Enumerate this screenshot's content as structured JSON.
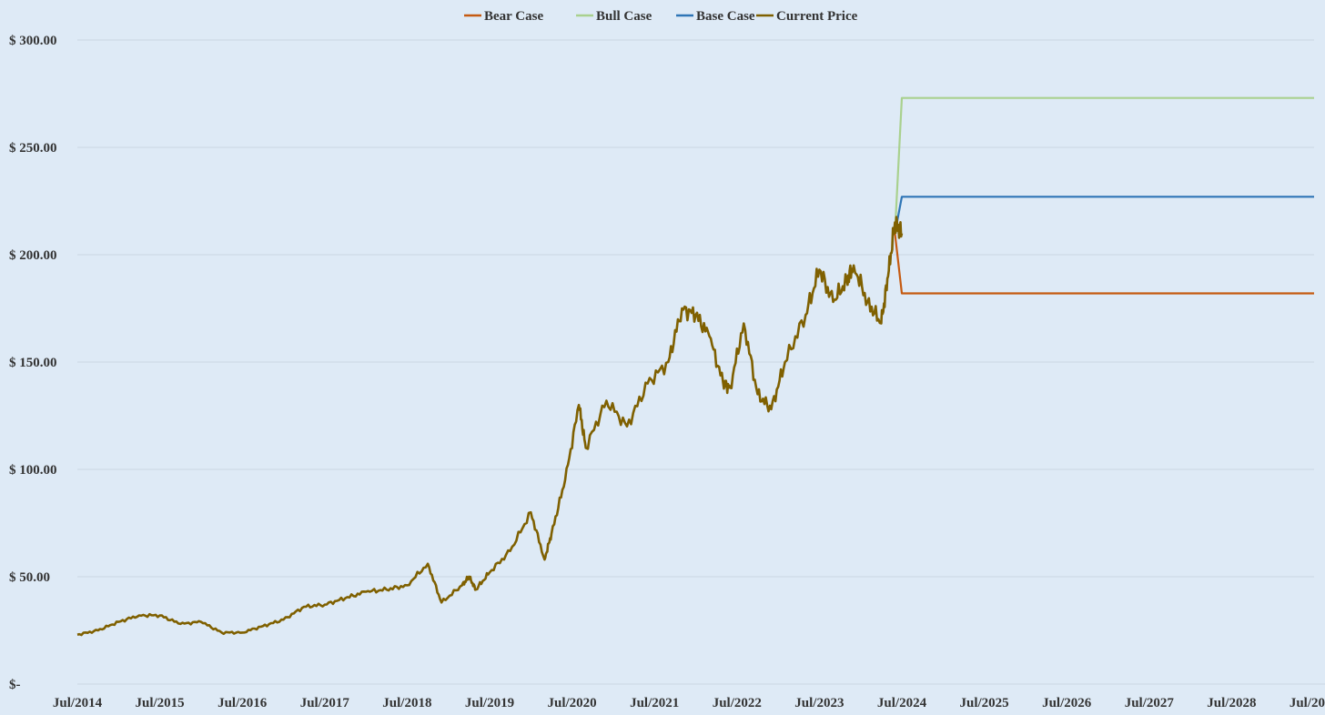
{
  "chart_data": {
    "type": "line",
    "title": "",
    "xlabel": "",
    "ylabel": "",
    "xlim": [
      "2014-07",
      "2029-07"
    ],
    "ylim": [
      0,
      300
    ],
    "grid": "horizontal",
    "legend_placement": "top-center",
    "background": "#deeaf6",
    "y_ticks": [
      {
        "value": 0,
        "label": "$-"
      },
      {
        "value": 50,
        "label": "$ 50.00"
      },
      {
        "value": 100,
        "label": "$ 100.00"
      },
      {
        "value": 150,
        "label": "$ 150.00"
      },
      {
        "value": 200,
        "label": "$ 200.00"
      },
      {
        "value": 250,
        "label": "$ 250.00"
      },
      {
        "value": 300,
        "label": "$ 300.00"
      }
    ],
    "x_ticks": [
      {
        "value": "2014-07",
        "label": "Jul/2014"
      },
      {
        "value": "2015-07",
        "label": "Jul/2015"
      },
      {
        "value": "2016-07",
        "label": "Jul/2016"
      },
      {
        "value": "2017-07",
        "label": "Jul/2017"
      },
      {
        "value": "2018-07",
        "label": "Jul/2018"
      },
      {
        "value": "2019-07",
        "label": "Jul/2019"
      },
      {
        "value": "2020-07",
        "label": "Jul/2020"
      },
      {
        "value": "2021-07",
        "label": "Jul/2021"
      },
      {
        "value": "2022-07",
        "label": "Jul/2022"
      },
      {
        "value": "2023-07",
        "label": "Jul/2023"
      },
      {
        "value": "2024-07",
        "label": "Jul/2024"
      },
      {
        "value": "2025-07",
        "label": "Jul/2025"
      },
      {
        "value": "2026-07",
        "label": "Jul/2026"
      },
      {
        "value": "2027-07",
        "label": "Jul/2027"
      },
      {
        "value": "2028-07",
        "label": "Jul/2028"
      },
      {
        "value": "2029-07",
        "label": "Jul/20"
      }
    ],
    "series": [
      {
        "name": "Bear Case",
        "color": "#c55a11",
        "points": [
          [
            "2024-06",
            210
          ],
          [
            "2024-07",
            182
          ],
          [
            "2029-07",
            182
          ]
        ]
      },
      {
        "name": "Bull Case",
        "color": "#a9d18e",
        "points": [
          [
            "2024-06",
            210
          ],
          [
            "2024-07",
            273
          ],
          [
            "2029-07",
            273
          ]
        ]
      },
      {
        "name": "Base Case",
        "color": "#2e75b6",
        "points": [
          [
            "2024-06",
            210
          ],
          [
            "2024-07",
            227
          ],
          [
            "2029-07",
            227
          ]
        ]
      },
      {
        "name": "Current Price",
        "color": "#7f6000",
        "points": [
          [
            "2014-07",
            23
          ],
          [
            "2014-10",
            25
          ],
          [
            "2015-01",
            29
          ],
          [
            "2015-04",
            32
          ],
          [
            "2015-07",
            32
          ],
          [
            "2015-10",
            28
          ],
          [
            "2016-01",
            29
          ],
          [
            "2016-04",
            24
          ],
          [
            "2016-07",
            24
          ],
          [
            "2016-10",
            27
          ],
          [
            "2017-01",
            30
          ],
          [
            "2017-04",
            36
          ],
          [
            "2017-07",
            37
          ],
          [
            "2017-10",
            40
          ],
          [
            "2018-01",
            43
          ],
          [
            "2018-04",
            44
          ],
          [
            "2018-07",
            46
          ],
          [
            "2018-10",
            56
          ],
          [
            "2018-12",
            38
          ],
          [
            "2019-03",
            46
          ],
          [
            "2019-04",
            50
          ],
          [
            "2019-05",
            44
          ],
          [
            "2019-07",
            52
          ],
          [
            "2019-10",
            62
          ],
          [
            "2020-01",
            80
          ],
          [
            "2020-03",
            58
          ],
          [
            "2020-04",
            70
          ],
          [
            "2020-06",
            95
          ],
          [
            "2020-08",
            130
          ],
          [
            "2020-09",
            110
          ],
          [
            "2020-12",
            132
          ],
          [
            "2021-03",
            120
          ],
          [
            "2021-06",
            140
          ],
          [
            "2021-09",
            150
          ],
          [
            "2021-11",
            175
          ],
          [
            "2022-01",
            172
          ],
          [
            "2022-03",
            162
          ],
          [
            "2022-05",
            140
          ],
          [
            "2022-06",
            138
          ],
          [
            "2022-08",
            168
          ],
          [
            "2022-10",
            135
          ],
          [
            "2022-12",
            128
          ],
          [
            "2023-02",
            150
          ],
          [
            "2023-05",
            172
          ],
          [
            "2023-07",
            193
          ],
          [
            "2023-09",
            178
          ],
          [
            "2023-11",
            188
          ],
          [
            "2023-12",
            195
          ],
          [
            "2024-02",
            178
          ],
          [
            "2024-04",
            168
          ],
          [
            "2024-05",
            190
          ],
          [
            "2024-06",
            215
          ],
          [
            "2024-07",
            210
          ]
        ]
      }
    ]
  }
}
